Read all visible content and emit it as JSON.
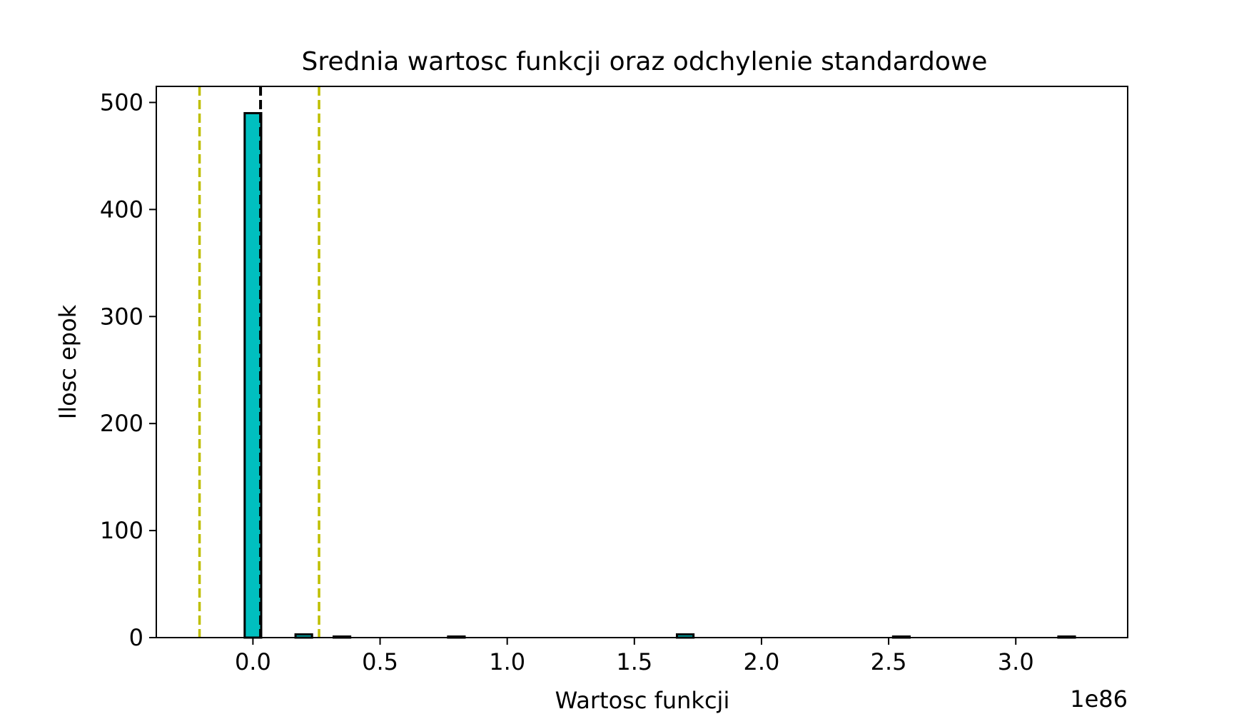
{
  "chart_data": {
    "type": "bar",
    "title": "Srednia wartosc funkcji oraz odchylenie standardowe",
    "xlabel": "Wartosc funkcji",
    "ylabel": "Ilosc epok",
    "x_offset_label": "1e86",
    "xlim": [
      -0.38,
      3.44
    ],
    "ylim": [
      0,
      515
    ],
    "x_ticks": [
      0.0,
      0.5,
      1.0,
      1.5,
      2.0,
      2.5,
      3.0
    ],
    "x_tick_labels": [
      "0.0",
      "0.5",
      "1.0",
      "1.5",
      "2.0",
      "2.5",
      "3.0"
    ],
    "y_ticks": [
      0,
      100,
      200,
      300,
      400,
      500
    ],
    "y_tick_labels": [
      "0",
      "100",
      "200",
      "300",
      "400",
      "500"
    ],
    "bin_width": 0.065,
    "bins": [
      {
        "x": 0.0,
        "value": 490
      },
      {
        "x": 0.2,
        "value": 3
      },
      {
        "x": 0.35,
        "value": 1
      },
      {
        "x": 0.8,
        "value": 1
      },
      {
        "x": 1.7,
        "value": 3
      },
      {
        "x": 2.55,
        "value": 1
      },
      {
        "x": 3.2,
        "value": 1
      }
    ],
    "mean_line": {
      "x": 0.03,
      "color": "#000000",
      "style": "dashed"
    },
    "std_lines": [
      {
        "x": -0.21,
        "color": "#bfbf00",
        "style": "dashed"
      },
      {
        "x": 0.26,
        "color": "#bfbf00",
        "style": "dashed"
      }
    ],
    "bar_color": "#00bfbf",
    "bar_edge_color": "#000000",
    "grid": false
  }
}
